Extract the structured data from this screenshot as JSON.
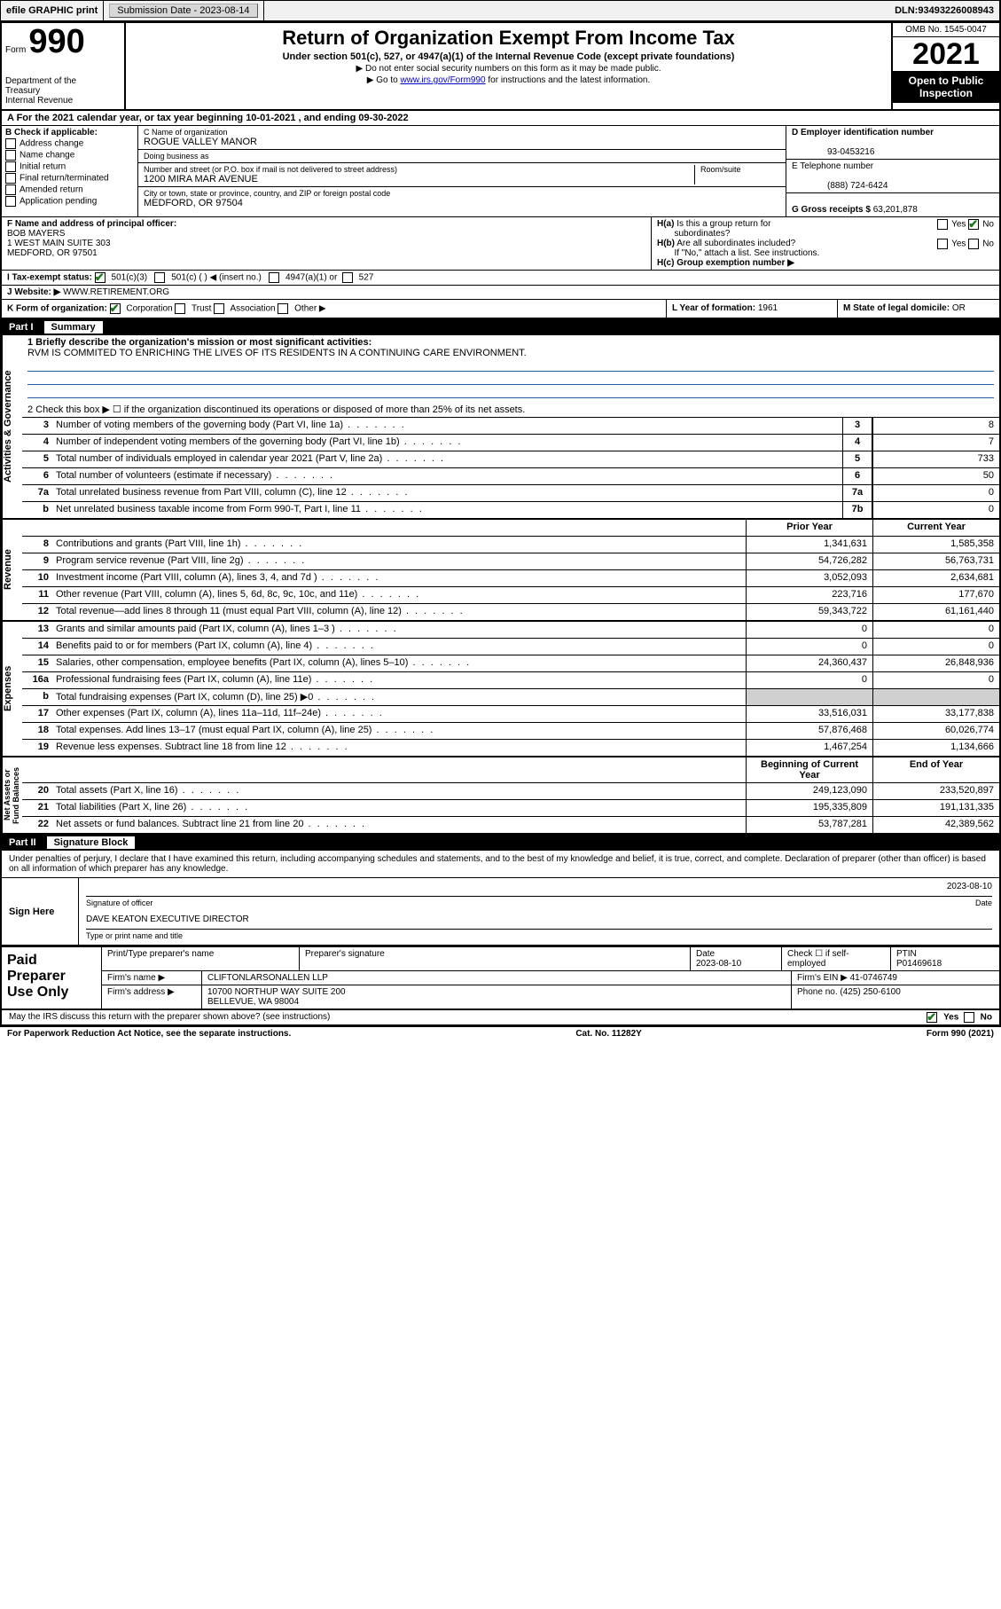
{
  "topbar": {
    "efile": "efile GRAPHIC print",
    "sub_label": "Submission Date - ",
    "sub_date": "2023-08-14",
    "dln_label": "DLN: ",
    "dln": "93493226008943"
  },
  "header": {
    "form_label": "Form",
    "form_num": "990",
    "dept": "Department of the Treasury\nInternal Revenue Service",
    "title": "Return of Organization Exempt From Income Tax",
    "sub": "Under section 501(c), 527, or 4947(a)(1) of the Internal Revenue Code (except private foundations)",
    "note1": "▶ Do not enter social security numbers on this form as it may be made public.",
    "note2_pre": "▶ Go to ",
    "note2_link": "www.irs.gov/Form990",
    "note2_post": " for instructions and the latest information.",
    "omb": "OMB No. 1545-0047",
    "year": "2021",
    "open": "Open to Public Inspection"
  },
  "rowA": {
    "text": "A For the 2021 calendar year, or tax year beginning 10-01-2021   , and ending 09-30-2022"
  },
  "secB": {
    "label": "B Check if applicable:",
    "opts": [
      "Address change",
      "Name change",
      "Initial return",
      "Final return/terminated",
      "Amended return",
      "Application pending"
    ]
  },
  "secC": {
    "name_label": "C Name of organization",
    "name": "ROGUE VALLEY MANOR",
    "dba_label": "Doing business as",
    "dba": "",
    "street_label": "Number and street (or P.O. box if mail is not delivered to street address)",
    "street": "1200 MIRA MAR AVENUE",
    "room_label": "Room/suite",
    "city_label": "City or town, state or province, country, and ZIP or foreign postal code",
    "city": "MEDFORD, OR  97504"
  },
  "secD": {
    "label": "D Employer identification number",
    "val": "93-0453216"
  },
  "secE": {
    "label": "E Telephone number",
    "val": "(888) 724-6424"
  },
  "secG": {
    "label": "G Gross receipts $ ",
    "val": "63,201,878"
  },
  "rowF": {
    "label": "F Name and address of principal officer:",
    "name": "BOB MAYERS",
    "addr1": "1 WEST MAIN SUITE 303",
    "addr2": "MEDFORD, OR  97501"
  },
  "rowH": {
    "ha": "H(a) Is this a group return for subordinates?",
    "ha_ans": "No",
    "hb": "H(b) Are all subordinates included?",
    "hb_note": "If \"No,\" attach a list. See instructions.",
    "hc": "H(c) Group exemption number ▶"
  },
  "rowI": {
    "label": "I   Tax-exempt status:",
    "o1": "501(c)(3)",
    "o2": "501(c) (  ) ◀ (insert no.)",
    "o3": "4947(a)(1) or",
    "o4": "527"
  },
  "rowJ": {
    "label": "J   Website: ▶",
    "val": "WWW.RETIREMENT.ORG"
  },
  "rowK": {
    "label": "K Form of organization:",
    "o1": "Corporation",
    "o2": "Trust",
    "o3": "Association",
    "o4": "Other ▶",
    "l_label": "L Year of formation: ",
    "l_val": "1961",
    "m_label": "M State of legal domicile: ",
    "m_val": "OR"
  },
  "part1": {
    "num": "Part I",
    "title": "Summary"
  },
  "mission_label": "1  Briefly describe the organization's mission or most significant activities:",
  "mission": "RVM IS COMMITED TO ENRICHING THE LIVES OF ITS RESIDENTS IN A CONTINUING CARE ENVIRONMENT.",
  "line2": "2  Check this box ▶ ☐  if the organization discontinued its operations or disposed of more than 25% of its net assets.",
  "gov": {
    "side": "Activities & Governance",
    "rows": [
      {
        "n": "3",
        "d": "Number of voting members of the governing body (Part VI, line 1a)",
        "box": "3",
        "v": "8"
      },
      {
        "n": "4",
        "d": "Number of independent voting members of the governing body (Part VI, line 1b)",
        "box": "4",
        "v": "7"
      },
      {
        "n": "5",
        "d": "Total number of individuals employed in calendar year 2021 (Part V, line 2a)",
        "box": "5",
        "v": "733"
      },
      {
        "n": "6",
        "d": "Total number of volunteers (estimate if necessary)",
        "box": "6",
        "v": "50"
      },
      {
        "n": "7a",
        "d": "Total unrelated business revenue from Part VIII, column (C), line 12",
        "box": "7a",
        "v": "0"
      },
      {
        "n": "b",
        "d": "Net unrelated business taxable income from Form 990-T, Part I, line 11",
        "box": "7b",
        "v": "0"
      }
    ]
  },
  "rev": {
    "side": "Revenue",
    "head": {
      "py": "Prior Year",
      "cy": "Current Year"
    },
    "rows": [
      {
        "n": "8",
        "d": "Contributions and grants (Part VIII, line 1h)",
        "py": "1,341,631",
        "cy": "1,585,358"
      },
      {
        "n": "9",
        "d": "Program service revenue (Part VIII, line 2g)",
        "py": "54,726,282",
        "cy": "56,763,731"
      },
      {
        "n": "10",
        "d": "Investment income (Part VIII, column (A), lines 3, 4, and 7d )",
        "py": "3,052,093",
        "cy": "2,634,681"
      },
      {
        "n": "11",
        "d": "Other revenue (Part VIII, column (A), lines 5, 6d, 8c, 9c, 10c, and 11e)",
        "py": "223,716",
        "cy": "177,670"
      },
      {
        "n": "12",
        "d": "Total revenue—add lines 8 through 11 (must equal Part VIII, column (A), line 12)",
        "py": "59,343,722",
        "cy": "61,161,440"
      }
    ]
  },
  "exp": {
    "side": "Expenses",
    "rows": [
      {
        "n": "13",
        "d": "Grants and similar amounts paid (Part IX, column (A), lines 1–3 )",
        "py": "0",
        "cy": "0"
      },
      {
        "n": "14",
        "d": "Benefits paid to or for members (Part IX, column (A), line 4)",
        "py": "0",
        "cy": "0"
      },
      {
        "n": "15",
        "d": "Salaries, other compensation, employee benefits (Part IX, column (A), lines 5–10)",
        "py": "24,360,437",
        "cy": "26,848,936"
      },
      {
        "n": "16a",
        "d": "Professional fundraising fees (Part IX, column (A), line 11e)",
        "py": "0",
        "cy": "0"
      },
      {
        "n": "b",
        "d": "Total fundraising expenses (Part IX, column (D), line 25) ▶0",
        "py": "",
        "cy": "",
        "shade": true
      },
      {
        "n": "17",
        "d": "Other expenses (Part IX, column (A), lines 11a–11d, 11f–24e)",
        "py": "33,516,031",
        "cy": "33,177,838"
      },
      {
        "n": "18",
        "d": "Total expenses. Add lines 13–17 (must equal Part IX, column (A), line 25)",
        "py": "57,876,468",
        "cy": "60,026,774"
      },
      {
        "n": "19",
        "d": "Revenue less expenses. Subtract line 18 from line 12",
        "py": "1,467,254",
        "cy": "1,134,666"
      }
    ]
  },
  "net": {
    "side": "Net Assets or Fund Balances",
    "head": {
      "py": "Beginning of Current Year",
      "cy": "End of Year"
    },
    "rows": [
      {
        "n": "20",
        "d": "Total assets (Part X, line 16)",
        "py": "249,123,090",
        "cy": "233,520,897"
      },
      {
        "n": "21",
        "d": "Total liabilities (Part X, line 26)",
        "py": "195,335,809",
        "cy": "191,131,335"
      },
      {
        "n": "22",
        "d": "Net assets or fund balances. Subtract line 21 from line 20",
        "py": "53,787,281",
        "cy": "42,389,562"
      }
    ]
  },
  "part2": {
    "num": "Part II",
    "title": "Signature Block"
  },
  "sig": {
    "decl": "Under penalties of perjury, I declare that I have examined this return, including accompanying schedules and statements, and to the best of my knowledge and belief, it is true, correct, and complete. Declaration of preparer (other than officer) is based on all information of which preparer has any knowledge.",
    "sign_here": "Sign Here",
    "sig_of_officer": "Signature of officer",
    "date": "2023-08-10",
    "date_label": "Date",
    "name_title": "DAVE KEATON  EXECUTIVE DIRECTOR",
    "type_label": "Type or print name and title"
  },
  "paid": {
    "label": "Paid Preparer Use Only",
    "h": [
      "Print/Type preparer's name",
      "Preparer's signature",
      "Date",
      "",
      "PTIN"
    ],
    "r1_date": "2023-08-10",
    "r1_check": "Check ☐ if self-employed",
    "r1_ptin": "P01469618",
    "firm_name_l": "Firm's name    ▶",
    "firm_name": "CLIFTONLARSONALLEN LLP",
    "firm_ein_l": "Firm's EIN ▶",
    "firm_ein": "41-0746749",
    "firm_addr_l": "Firm's address ▶",
    "firm_addr1": "10700 NORTHUP WAY SUITE 200",
    "firm_addr2": "BELLEVUE, WA  98004",
    "phone_l": "Phone no. ",
    "phone": "(425) 250-6100"
  },
  "footer": {
    "discuss": "May the IRS discuss this return with the preparer shown above? (see instructions)",
    "yes": "Yes",
    "no": "No",
    "pra": "For Paperwork Reduction Act Notice, see the separate instructions.",
    "cat": "Cat. No. 11282Y",
    "form": "Form 990 (2021)"
  }
}
